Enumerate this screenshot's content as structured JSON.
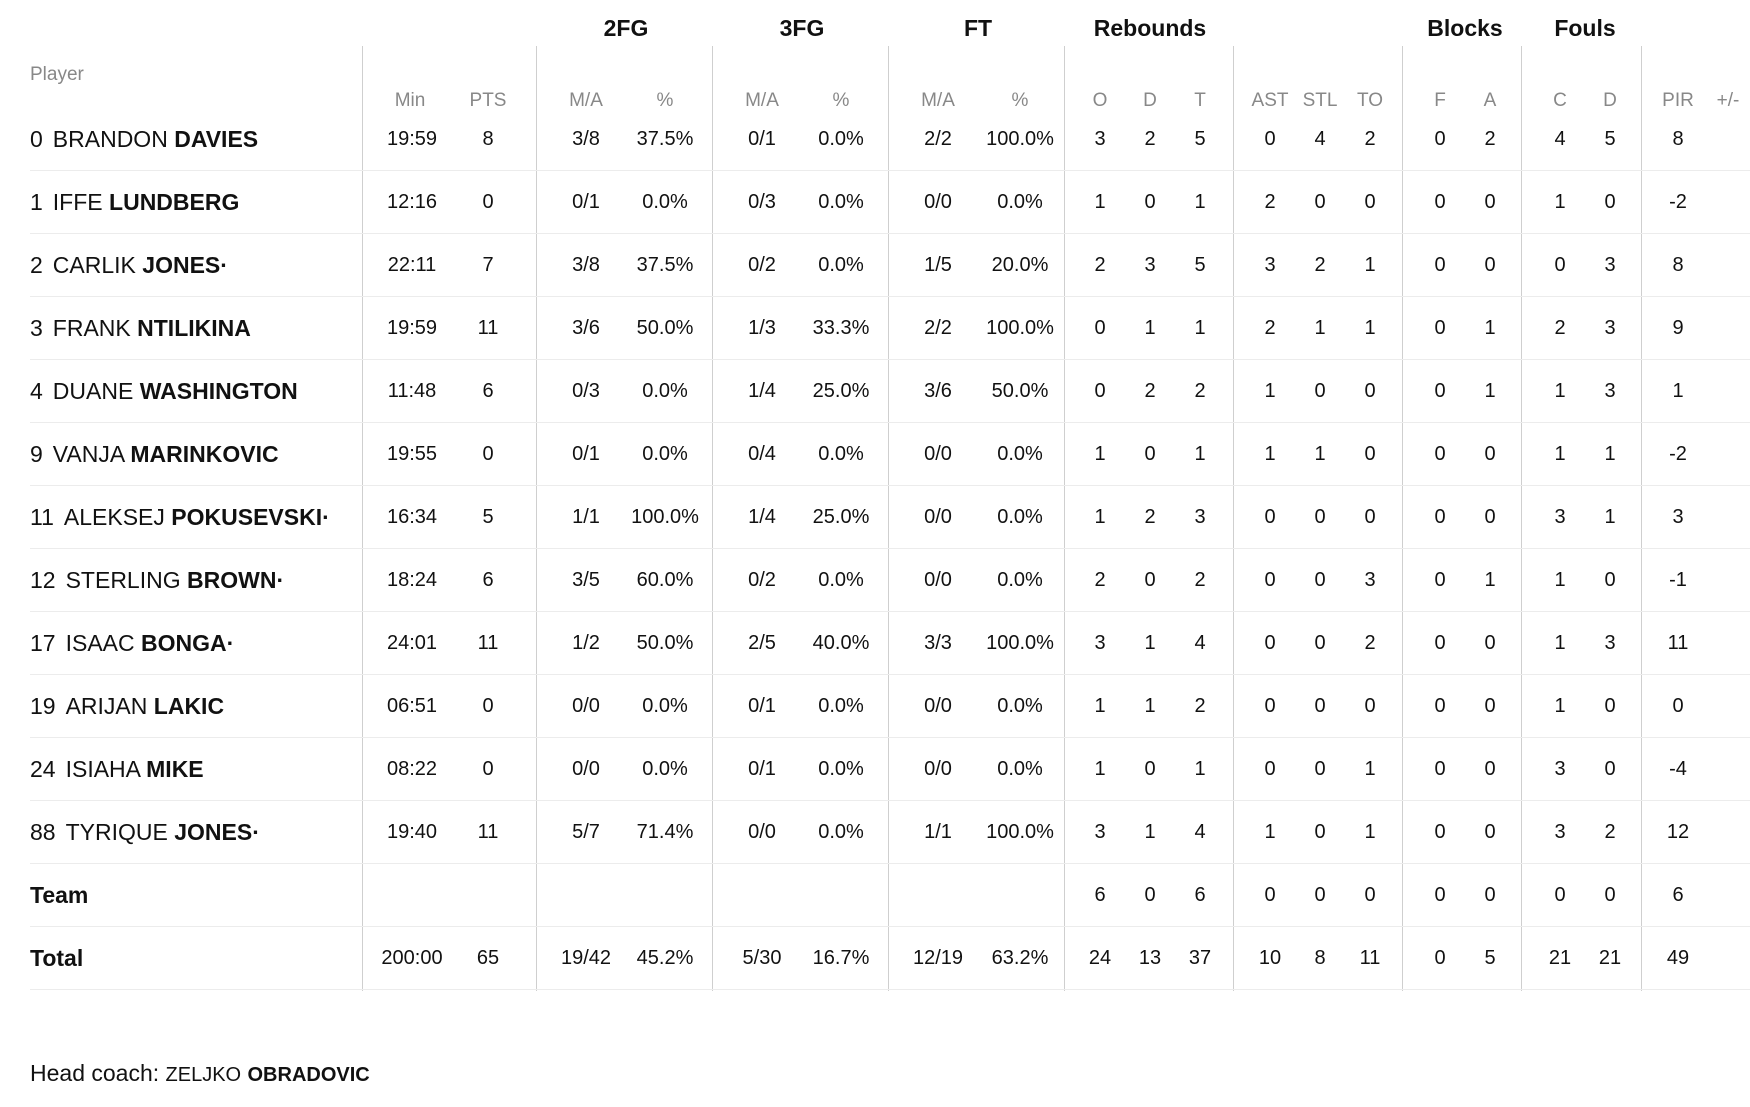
{
  "groups": {
    "fg2": "2FG",
    "fg3": "3FG",
    "ft": "FT",
    "reb": "Rebounds",
    "blk": "Blocks",
    "fouls": "Fouls"
  },
  "columns": {
    "player": "Player",
    "min": "Min",
    "pts": "PTS",
    "fg2_ma": "M/A",
    "fg2_pct": "%",
    "fg3_ma": "M/A",
    "fg3_pct": "%",
    "ft_ma": "M/A",
    "ft_pct": "%",
    "reb_o": "O",
    "reb_d": "D",
    "reb_t": "T",
    "ast": "AST",
    "stl": "STL",
    "to": "TO",
    "blk_f": "F",
    "blk_a": "A",
    "foul_c": "C",
    "foul_d": "D",
    "pir": "PIR",
    "pm": "+/-"
  },
  "players": [
    {
      "num": "0",
      "first": "BRANDON",
      "last": "DAVIES",
      "min": "19:59",
      "pts": "8",
      "fg2_ma": "3/8",
      "fg2_pct": "37.5%",
      "fg3_ma": "0/1",
      "fg3_pct": "0.0%",
      "ft_ma": "2/2",
      "ft_pct": "100.0%",
      "reb_o": "3",
      "reb_d": "2",
      "reb_t": "5",
      "ast": "0",
      "stl": "4",
      "to": "2",
      "blk_f": "0",
      "blk_a": "2",
      "foul_c": "4",
      "foul_d": "5",
      "pir": "8"
    },
    {
      "num": "1",
      "first": "IFFE",
      "last": "LUNDBERG",
      "min": "12:16",
      "pts": "0",
      "fg2_ma": "0/1",
      "fg2_pct": "0.0%",
      "fg3_ma": "0/3",
      "fg3_pct": "0.0%",
      "ft_ma": "0/0",
      "ft_pct": "0.0%",
      "reb_o": "1",
      "reb_d": "0",
      "reb_t": "1",
      "ast": "2",
      "stl": "0",
      "to": "0",
      "blk_f": "0",
      "blk_a": "0",
      "foul_c": "1",
      "foul_d": "0",
      "pir": "-2"
    },
    {
      "num": "2",
      "first": "CARLIK",
      "last": "JONES·",
      "min": "22:11",
      "pts": "7",
      "fg2_ma": "3/8",
      "fg2_pct": "37.5%",
      "fg3_ma": "0/2",
      "fg3_pct": "0.0%",
      "ft_ma": "1/5",
      "ft_pct": "20.0%",
      "reb_o": "2",
      "reb_d": "3",
      "reb_t": "5",
      "ast": "3",
      "stl": "2",
      "to": "1",
      "blk_f": "0",
      "blk_a": "0",
      "foul_c": "0",
      "foul_d": "3",
      "pir": "8"
    },
    {
      "num": "3",
      "first": "FRANK",
      "last": "NTILIKINA",
      "min": "19:59",
      "pts": "11",
      "fg2_ma": "3/6",
      "fg2_pct": "50.0%",
      "fg3_ma": "1/3",
      "fg3_pct": "33.3%",
      "ft_ma": "2/2",
      "ft_pct": "100.0%",
      "reb_o": "0",
      "reb_d": "1",
      "reb_t": "1",
      "ast": "2",
      "stl": "1",
      "to": "1",
      "blk_f": "0",
      "blk_a": "1",
      "foul_c": "2",
      "foul_d": "3",
      "pir": "9"
    },
    {
      "num": "4",
      "first": "DUANE",
      "last": "WASHINGTON",
      "min": "11:48",
      "pts": "6",
      "fg2_ma": "0/3",
      "fg2_pct": "0.0%",
      "fg3_ma": "1/4",
      "fg3_pct": "25.0%",
      "ft_ma": "3/6",
      "ft_pct": "50.0%",
      "reb_o": "0",
      "reb_d": "2",
      "reb_t": "2",
      "ast": "1",
      "stl": "0",
      "to": "0",
      "blk_f": "0",
      "blk_a": "1",
      "foul_c": "1",
      "foul_d": "3",
      "pir": "1"
    },
    {
      "num": "9",
      "first": "VANJA",
      "last": "MARINKOVIC",
      "min": "19:55",
      "pts": "0",
      "fg2_ma": "0/1",
      "fg2_pct": "0.0%",
      "fg3_ma": "0/4",
      "fg3_pct": "0.0%",
      "ft_ma": "0/0",
      "ft_pct": "0.0%",
      "reb_o": "1",
      "reb_d": "0",
      "reb_t": "1",
      "ast": "1",
      "stl": "1",
      "to": "0",
      "blk_f": "0",
      "blk_a": "0",
      "foul_c": "1",
      "foul_d": "1",
      "pir": "-2"
    },
    {
      "num": "11",
      "first": "ALEKSEJ",
      "last": "POKUSEVSKI·",
      "min": "16:34",
      "pts": "5",
      "fg2_ma": "1/1",
      "fg2_pct": "100.0%",
      "fg3_ma": "1/4",
      "fg3_pct": "25.0%",
      "ft_ma": "0/0",
      "ft_pct": "0.0%",
      "reb_o": "1",
      "reb_d": "2",
      "reb_t": "3",
      "ast": "0",
      "stl": "0",
      "to": "0",
      "blk_f": "0",
      "blk_a": "0",
      "foul_c": "3",
      "foul_d": "1",
      "pir": "3"
    },
    {
      "num": "12",
      "first": "STERLING",
      "last": "BROWN·",
      "min": "18:24",
      "pts": "6",
      "fg2_ma": "3/5",
      "fg2_pct": "60.0%",
      "fg3_ma": "0/2",
      "fg3_pct": "0.0%",
      "ft_ma": "0/0",
      "ft_pct": "0.0%",
      "reb_o": "2",
      "reb_d": "0",
      "reb_t": "2",
      "ast": "0",
      "stl": "0",
      "to": "3",
      "blk_f": "0",
      "blk_a": "1",
      "foul_c": "1",
      "foul_d": "0",
      "pir": "-1"
    },
    {
      "num": "17",
      "first": "ISAAC",
      "last": "BONGA·",
      "min": "24:01",
      "pts": "11",
      "fg2_ma": "1/2",
      "fg2_pct": "50.0%",
      "fg3_ma": "2/5",
      "fg3_pct": "40.0%",
      "ft_ma": "3/3",
      "ft_pct": "100.0%",
      "reb_o": "3",
      "reb_d": "1",
      "reb_t": "4",
      "ast": "0",
      "stl": "0",
      "to": "2",
      "blk_f": "0",
      "blk_a": "0",
      "foul_c": "1",
      "foul_d": "3",
      "pir": "11"
    },
    {
      "num": "19",
      "first": "ARIJAN",
      "last": "LAKIC",
      "min": "06:51",
      "pts": "0",
      "fg2_ma": "0/0",
      "fg2_pct": "0.0%",
      "fg3_ma": "0/1",
      "fg3_pct": "0.0%",
      "ft_ma": "0/0",
      "ft_pct": "0.0%",
      "reb_o": "1",
      "reb_d": "1",
      "reb_t": "2",
      "ast": "0",
      "stl": "0",
      "to": "0",
      "blk_f": "0",
      "blk_a": "0",
      "foul_c": "1",
      "foul_d": "0",
      "pir": "0"
    },
    {
      "num": "24",
      "first": "ISIAHA",
      "last": "MIKE",
      "min": "08:22",
      "pts": "0",
      "fg2_ma": "0/0",
      "fg2_pct": "0.0%",
      "fg3_ma": "0/1",
      "fg3_pct": "0.0%",
      "ft_ma": "0/0",
      "ft_pct": "0.0%",
      "reb_o": "1",
      "reb_d": "0",
      "reb_t": "1",
      "ast": "0",
      "stl": "0",
      "to": "1",
      "blk_f": "0",
      "blk_a": "0",
      "foul_c": "3",
      "foul_d": "0",
      "pir": "-4"
    },
    {
      "num": "88",
      "first": "TYRIQUE",
      "last": "JONES·",
      "min": "19:40",
      "pts": "11",
      "fg2_ma": "5/7",
      "fg2_pct": "71.4%",
      "fg3_ma": "0/0",
      "fg3_pct": "0.0%",
      "ft_ma": "1/1",
      "ft_pct": "100.0%",
      "reb_o": "3",
      "reb_d": "1",
      "reb_t": "4",
      "ast": "1",
      "stl": "0",
      "to": "1",
      "blk_f": "0",
      "blk_a": "0",
      "foul_c": "3",
      "foul_d": "2",
      "pir": "12"
    }
  ],
  "team": {
    "label": "Team",
    "reb_o": "6",
    "reb_d": "0",
    "reb_t": "6",
    "ast": "0",
    "stl": "0",
    "to": "0",
    "blk_f": "0",
    "blk_a": "0",
    "foul_c": "0",
    "foul_d": "0",
    "pir": "6"
  },
  "total": {
    "label": "Total",
    "min": "200:00",
    "pts": "65",
    "fg2_ma": "19/42",
    "fg2_pct": "45.2%",
    "fg3_ma": "5/30",
    "fg3_pct": "16.7%",
    "ft_ma": "12/19",
    "ft_pct": "63.2%",
    "reb_o": "24",
    "reb_d": "13",
    "reb_t": "37",
    "ast": "10",
    "stl": "8",
    "to": "11",
    "blk_f": "0",
    "blk_a": "5",
    "foul_c": "21",
    "foul_d": "21",
    "pir": "49"
  },
  "coach": {
    "label": "Head coach:",
    "first": "ZELJKO",
    "last": "OBRADOVIC"
  }
}
